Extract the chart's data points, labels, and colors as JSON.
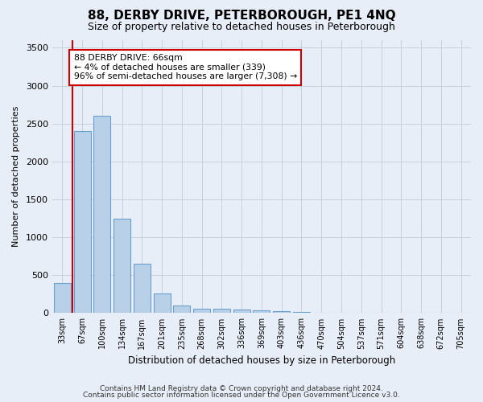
{
  "title": "88, DERBY DRIVE, PETERBOROUGH, PE1 4NQ",
  "subtitle": "Size of property relative to detached houses in Peterborough",
  "xlabel": "Distribution of detached houses by size in Peterborough",
  "ylabel": "Number of detached properties",
  "footnote1": "Contains HM Land Registry data © Crown copyright and database right 2024.",
  "footnote2": "Contains public sector information licensed under the Open Government Licence v3.0.",
  "categories": [
    "33sqm",
    "67sqm",
    "100sqm",
    "134sqm",
    "167sqm",
    "201sqm",
    "235sqm",
    "268sqm",
    "302sqm",
    "336sqm",
    "369sqm",
    "403sqm",
    "436sqm",
    "470sqm",
    "504sqm",
    "537sqm",
    "571sqm",
    "604sqm",
    "638sqm",
    "672sqm",
    "705sqm"
  ],
  "values": [
    400,
    2400,
    2600,
    1250,
    650,
    260,
    100,
    60,
    60,
    50,
    40,
    30,
    10,
    5,
    3,
    2,
    1,
    1,
    0,
    0,
    0
  ],
  "bar_color": "#b8d0e8",
  "bar_edge_color": "#6aa0cc",
  "grid_color": "#c8d0dc",
  "annotation_box_color": "#cc0000",
  "annotation_line_color": "#cc0000",
  "ylim": [
    0,
    3600
  ],
  "yticks": [
    0,
    500,
    1000,
    1500,
    2000,
    2500,
    3000,
    3500
  ],
  "annotation_title": "88 DERBY DRIVE: 66sqm",
  "annotation_line1": "← 4% of detached houses are smaller (339)",
  "annotation_line2": "96% of semi-detached houses are larger (7,308) →",
  "bg_color": "#e8eef8"
}
